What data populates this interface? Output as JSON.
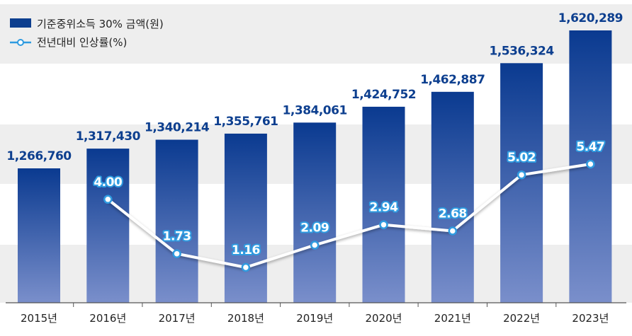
{
  "chart_data": {
    "type": "bar",
    "categories": [
      "2015년",
      "2016년",
      "2017년",
      "2018년",
      "2019년",
      "2020년",
      "2021년",
      "2022년",
      "2023년"
    ],
    "series": [
      {
        "name": "기준중위소득 30% 금액(원)",
        "type": "bar",
        "values": [
          1266760,
          1317430,
          1340214,
          1355761,
          1384061,
          1424752,
          1462887,
          1536324,
          1620289
        ],
        "labels": [
          "1,266,760",
          "1,317,430",
          "1,340,214",
          "1,355,761",
          "1,384,061",
          "1,424,752",
          "1,462,887",
          "1,536,324",
          "1,620,289"
        ]
      },
      {
        "name": "전년대비 인상률(%)",
        "type": "line",
        "values": [
          null,
          4.0,
          1.73,
          1.16,
          2.09,
          2.94,
          2.68,
          5.02,
          5.47
        ],
        "labels": [
          "",
          "4.00",
          "1.73",
          "1.16",
          "2.09",
          "2.94",
          "2.68",
          "5.02",
          "5.47"
        ]
      }
    ],
    "legend": "top-left",
    "grid": "horizontal bands",
    "colors": {
      "bar_top": "#0a3a90",
      "bar_bottom": "#7a8fcb",
      "line": "#ffffff",
      "marker_stroke": "#2f9be0",
      "band": "#eeeeee",
      "axis": "#555555"
    }
  }
}
